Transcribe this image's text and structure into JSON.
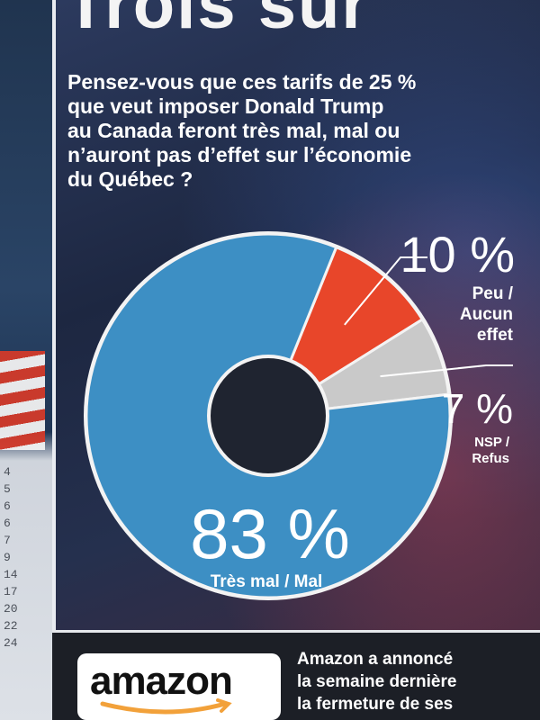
{
  "headline_fragment": "Trois sur",
  "question": "Pensez-vous que ces tarifs de 25 %\nque veut imposer Donald Trump\nau Canada feront très mal, mal ou\nn’auront pas d’effet sur l’économie\ndu Québec ?",
  "chart_data": {
    "type": "pie",
    "style": "donut",
    "unit": "%",
    "slices": [
      {
        "value": 10,
        "label": "10 %",
        "name": "Peu /\nAucun\neffet",
        "color": "#e8462a"
      },
      {
        "value": 7,
        "label": "7 %",
        "name": "NSP /\nRefus",
        "color": "#c9c9c9"
      },
      {
        "value": 83,
        "label": "83 %",
        "name": "Très mal / Mal",
        "color": "#3d8fc4"
      }
    ]
  },
  "row_numbers": [
    "4",
    "5",
    "6",
    "6",
    "7",
    "9",
    "14",
    "17",
    "20",
    "22",
    "24"
  ],
  "bottom": {
    "logo_text": "amazon",
    "news_text": "Amazon a annoncé\nla semaine dernière\nla fermeture de ses"
  }
}
